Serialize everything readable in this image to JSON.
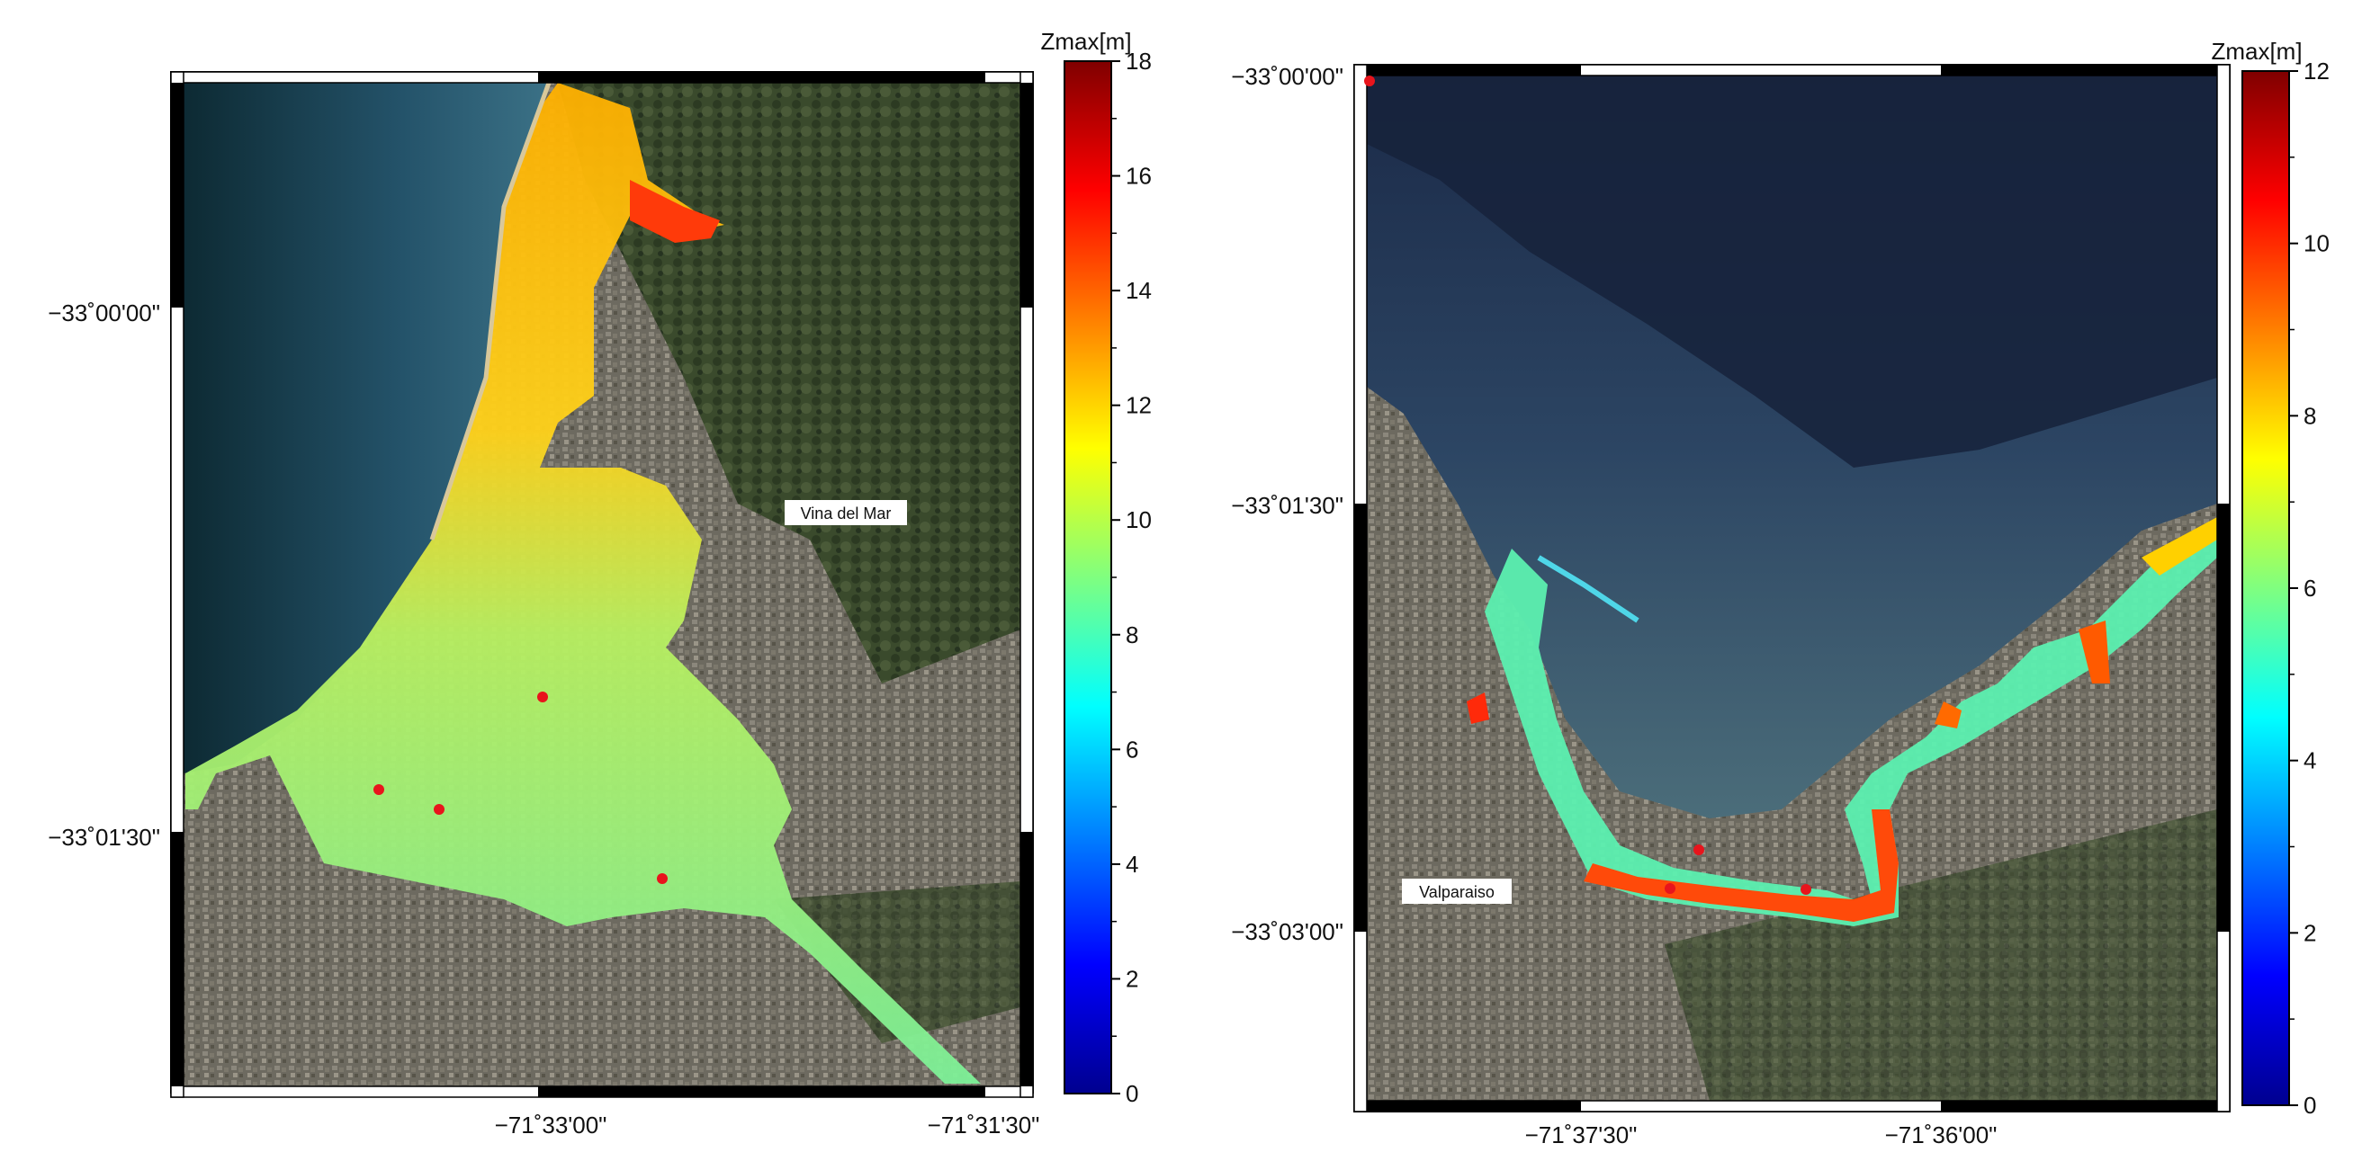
{
  "maps": [
    {
      "id": "left",
      "colorbar": {
        "title": "Zmax[m]",
        "min": 0,
        "max": 18,
        "ticks": [
          "0",
          "2",
          "4",
          "6",
          "8",
          "10",
          "12",
          "14",
          "16",
          "18"
        ]
      },
      "lat_labels": [
        "−33˚00'00\"",
        "−33˚01'30\""
      ],
      "lon_labels": [
        "−71˚33'00\"",
        "−71˚31'30\""
      ],
      "place_label": "Vina del Mar",
      "gauge_count": 4
    },
    {
      "id": "right",
      "colorbar": {
        "title": "Zmax[m]",
        "min": 0,
        "max": 12,
        "ticks": [
          "0",
          "2",
          "4",
          "6",
          "8",
          "10",
          "12"
        ]
      },
      "lat_labels": [
        "−33˚00'00\"",
        "−33˚01'30\"",
        "−33˚03'00\""
      ],
      "lon_labels": [
        "−71˚37'30\"",
        "−71˚36'00\""
      ],
      "place_label": "Valparaiso",
      "gauge_count": 4
    }
  ],
  "colors": {
    "gauge_marker": "#e8141c",
    "sea_deep": "#1c3146",
    "land": "#5c5a4e"
  }
}
